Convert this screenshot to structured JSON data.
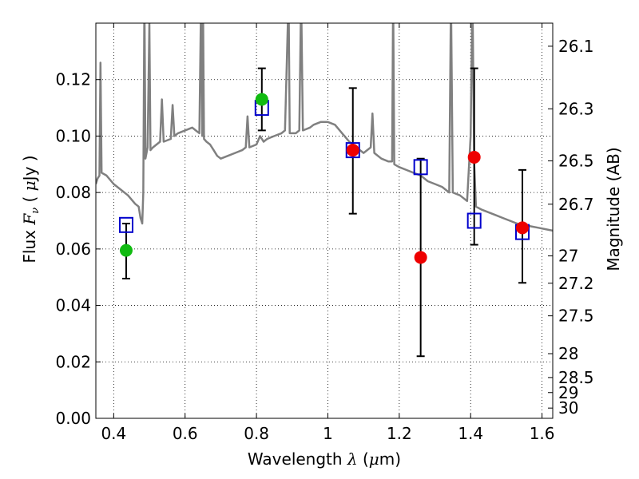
{
  "chart_data": {
    "type": "scatter",
    "xlabel": {
      "prefix": "Wavelength  ",
      "symbol": "λ",
      "suffix": " (",
      "mu": "μ",
      "unit": "m)"
    },
    "ylabel": {
      "prefix": "Flux  ",
      "symbol": "F",
      "sub": "ν",
      "mid": "  ( ",
      "mu": "μ",
      "unit": "Jy )"
    },
    "y2label": "Magnitude (AB)",
    "xlim": [
      0.35,
      1.63
    ],
    "ylim": [
      0.0,
      0.14
    ],
    "x_ticks": [
      0.4,
      0.6,
      0.8,
      1.0,
      1.2,
      1.4,
      1.6
    ],
    "x_tick_labels": [
      "0.4",
      "0.6",
      "0.8",
      "1",
      "1.2",
      "1.4",
      "1.6"
    ],
    "y_ticks": [
      0.0,
      0.02,
      0.04,
      0.06,
      0.08,
      0.1,
      0.12
    ],
    "y_tick_labels": [
      "0.00",
      "0.02",
      "0.04",
      "0.06",
      "0.08",
      "0.10",
      "0.12"
    ],
    "mag_ticks": [
      26.1,
      26.3,
      26.5,
      26.7,
      27,
      27.2,
      27.5,
      28,
      28.5,
      29,
      30
    ],
    "mag_tick_labels": [
      "26.1",
      "26.3",
      "26.5",
      "26.7",
      "27",
      "27.2",
      "27.5",
      "28",
      "28.5",
      "29",
      "30"
    ],
    "grid": true,
    "colors": {
      "model": "#808080",
      "green": "#11bb11",
      "red": "#ee0000",
      "square": "#0000cc",
      "errorbar": "#000000"
    },
    "series": [
      {
        "marker": "square",
        "points": [
          {
            "x": 0.435,
            "y": 0.0685
          },
          {
            "x": 0.815,
            "y": 0.11
          },
          {
            "x": 1.07,
            "y": 0.095
          },
          {
            "x": 1.26,
            "y": 0.089
          },
          {
            "x": 1.41,
            "y": 0.07
          },
          {
            "x": 1.545,
            "y": 0.066
          }
        ]
      },
      {
        "marker": "green-circle",
        "points": [
          {
            "x": 0.435,
            "y": 0.0595,
            "ylo": 0.0495,
            "yhi": 0.069
          },
          {
            "x": 0.815,
            "y": 0.113,
            "ylo": 0.102,
            "yhi": 0.124
          }
        ]
      },
      {
        "marker": "red-circle",
        "points": [
          {
            "x": 1.07,
            "y": 0.095,
            "ylo": 0.0725,
            "yhi": 0.117
          },
          {
            "x": 1.26,
            "y": 0.057,
            "ylo": 0.022,
            "yhi": 0.092
          },
          {
            "x": 1.41,
            "y": 0.0925,
            "ylo": 0.0615,
            "yhi": 0.124
          },
          {
            "x": 1.545,
            "y": 0.0675,
            "ylo": 0.048,
            "yhi": 0.088
          }
        ]
      },
      {
        "marker": "model-spectrum-line",
        "points": [
          [
            0.35,
            0.083
          ],
          [
            0.355,
            0.085
          ],
          [
            0.36,
            0.086
          ],
          [
            0.363,
            0.126
          ],
          [
            0.366,
            0.087
          ],
          [
            0.38,
            0.086
          ],
          [
            0.4,
            0.083
          ],
          [
            0.42,
            0.081
          ],
          [
            0.44,
            0.079
          ],
          [
            0.46,
            0.076
          ],
          [
            0.47,
            0.075
          ],
          [
            0.475,
            0.071
          ],
          [
            0.48,
            0.069
          ],
          [
            0.483,
            0.08
          ],
          [
            0.486,
            0.15
          ],
          [
            0.489,
            0.092
          ],
          [
            0.495,
            0.096
          ],
          [
            0.5,
            0.14
          ],
          [
            0.503,
            0.095
          ],
          [
            0.51,
            0.096
          ],
          [
            0.53,
            0.098
          ],
          [
            0.535,
            0.113
          ],
          [
            0.54,
            0.098
          ],
          [
            0.56,
            0.099
          ],
          [
            0.565,
            0.111
          ],
          [
            0.57,
            0.1
          ],
          [
            0.58,
            0.101
          ],
          [
            0.6,
            0.102
          ],
          [
            0.62,
            0.103
          ],
          [
            0.63,
            0.102
          ],
          [
            0.64,
            0.101
          ],
          [
            0.645,
            0.15
          ],
          [
            0.648,
            0.1
          ],
          [
            0.65,
            0.15
          ],
          [
            0.653,
            0.099
          ],
          [
            0.66,
            0.098
          ],
          [
            0.67,
            0.097
          ],
          [
            0.68,
            0.095
          ],
          [
            0.69,
            0.093
          ],
          [
            0.7,
            0.092
          ],
          [
            0.72,
            0.093
          ],
          [
            0.74,
            0.094
          ],
          [
            0.76,
            0.095
          ],
          [
            0.77,
            0.096
          ],
          [
            0.775,
            0.107
          ],
          [
            0.78,
            0.096
          ],
          [
            0.8,
            0.097
          ],
          [
            0.81,
            0.1
          ],
          [
            0.82,
            0.098
          ],
          [
            0.83,
            0.099
          ],
          [
            0.85,
            0.1
          ],
          [
            0.87,
            0.101
          ],
          [
            0.88,
            0.102
          ],
          [
            0.89,
            0.15
          ],
          [
            0.893,
            0.101
          ],
          [
            0.91,
            0.101
          ],
          [
            0.92,
            0.102
          ],
          [
            0.925,
            0.15
          ],
          [
            0.93,
            0.102
          ],
          [
            0.95,
            0.103
          ],
          [
            0.96,
            0.104
          ],
          [
            0.98,
            0.105
          ],
          [
            1.0,
            0.105
          ],
          [
            1.02,
            0.104
          ],
          [
            1.04,
            0.101
          ],
          [
            1.06,
            0.098
          ],
          [
            1.08,
            0.096
          ],
          [
            1.1,
            0.094
          ],
          [
            1.12,
            0.096
          ],
          [
            1.125,
            0.108
          ],
          [
            1.13,
            0.094
          ],
          [
            1.15,
            0.092
          ],
          [
            1.17,
            0.091
          ],
          [
            1.18,
            0.091
          ],
          [
            1.183,
            0.15
          ],
          [
            1.186,
            0.09
          ],
          [
            1.2,
            0.089
          ],
          [
            1.22,
            0.088
          ],
          [
            1.24,
            0.087
          ],
          [
            1.26,
            0.086
          ],
          [
            1.28,
            0.084
          ],
          [
            1.3,
            0.083
          ],
          [
            1.32,
            0.082
          ],
          [
            1.34,
            0.08
          ],
          [
            1.345,
            0.15
          ],
          [
            1.35,
            0.08
          ],
          [
            1.37,
            0.079
          ],
          [
            1.39,
            0.077
          ],
          [
            1.4,
            0.1
          ],
          [
            1.405,
            0.15
          ],
          [
            1.41,
            0.09
          ],
          [
            1.415,
            0.075
          ],
          [
            1.43,
            0.074
          ],
          [
            1.45,
            0.073
          ],
          [
            1.47,
            0.072
          ],
          [
            1.49,
            0.071
          ],
          [
            1.51,
            0.07
          ],
          [
            1.53,
            0.069
          ],
          [
            1.55,
            0.0685
          ],
          [
            1.57,
            0.068
          ],
          [
            1.59,
            0.0675
          ],
          [
            1.61,
            0.067
          ],
          [
            1.63,
            0.0665
          ]
        ]
      }
    ]
  }
}
